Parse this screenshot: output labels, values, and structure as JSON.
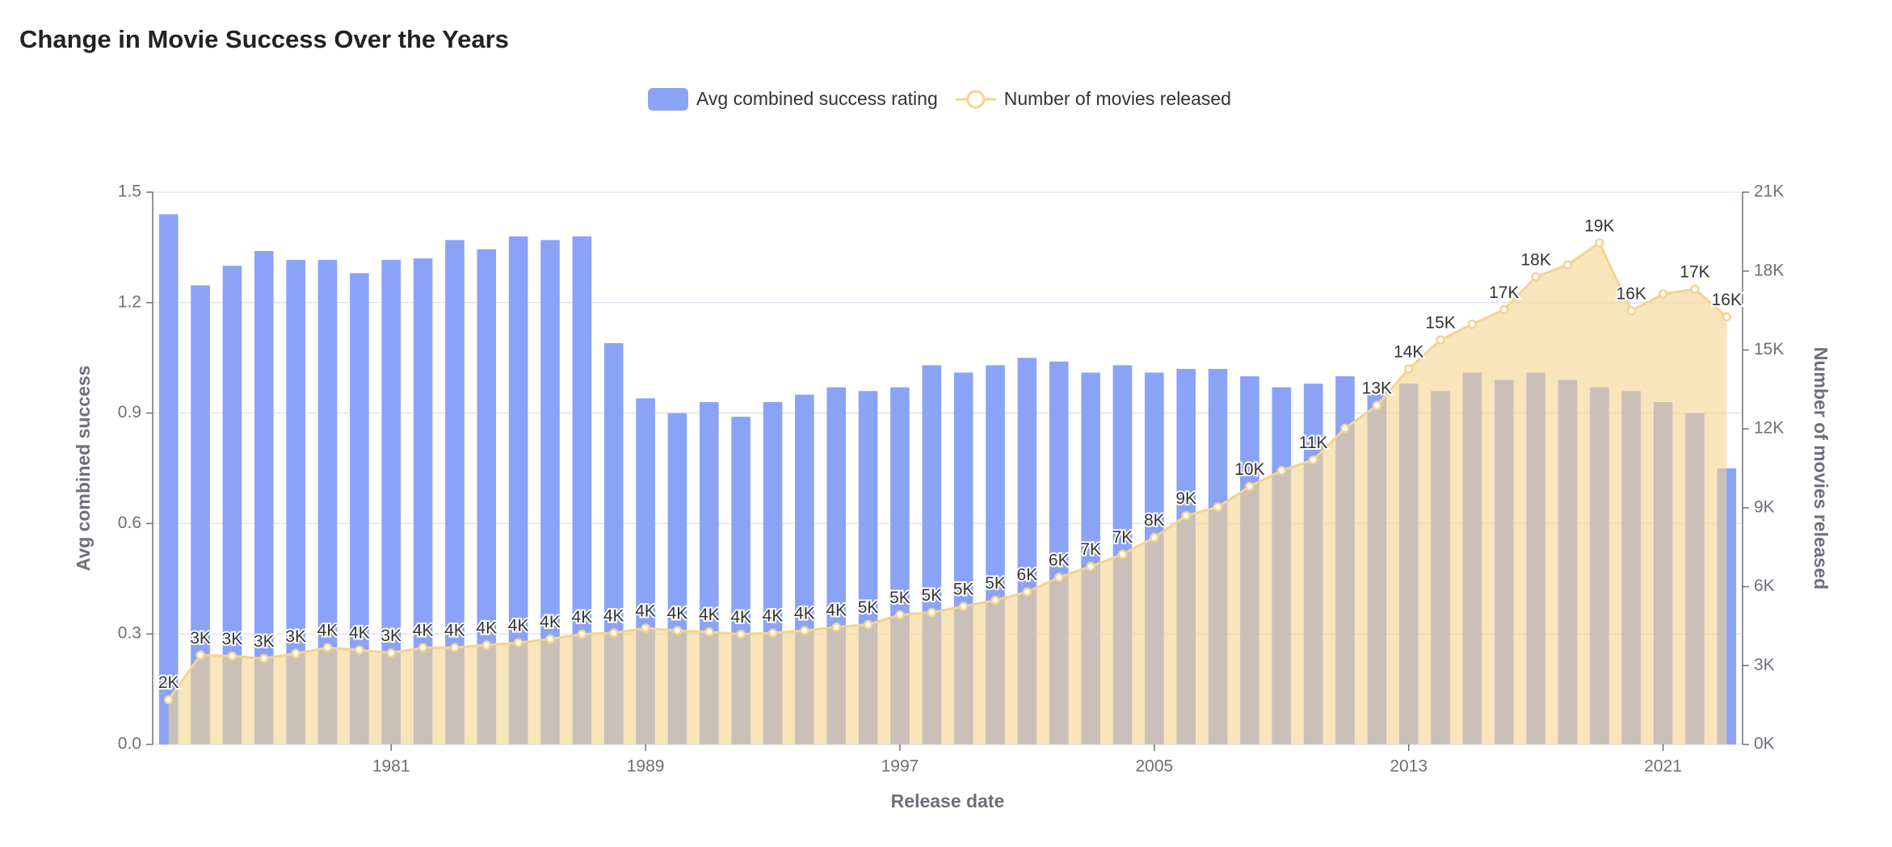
{
  "chart_data": {
    "type": "bar-line",
    "title": "Change in Movie Success Over the Years",
    "x_label": "Release date",
    "y_label": "Avg combined success",
    "y2_label": "Number of movies released",
    "categories": [
      null,
      null,
      null,
      null,
      null,
      null,
      null,
      "1981",
      null,
      null,
      null,
      null,
      null,
      null,
      null,
      "1989",
      null,
      null,
      null,
      null,
      null,
      null,
      null,
      "1997",
      null,
      null,
      null,
      null,
      null,
      null,
      null,
      "2005",
      null,
      null,
      null,
      null,
      null,
      null,
      null,
      "2013",
      null,
      null,
      null,
      null,
      null,
      null,
      null,
      "2021",
      null,
      null
    ],
    "series": [
      {
        "name": "Avg combined success rating",
        "type": "bar",
        "color": "#8ba3f6",
        "values": [
          1.44,
          1.247,
          1.3,
          1.34,
          1.316,
          1.316,
          1.28,
          1.316,
          1.32,
          1.37,
          1.345,
          1.38,
          1.37,
          1.38,
          1.09,
          0.94,
          0.9,
          0.93,
          0.89,
          0.93,
          0.95,
          0.97,
          0.96,
          0.97,
          1.03,
          1.01,
          1.03,
          1.05,
          1.04,
          1.01,
          1.03,
          1.01,
          1.02,
          1.02,
          1.0,
          0.97,
          0.98,
          1.0,
          0.96,
          0.98,
          0.96,
          1.01,
          0.99,
          1.01,
          0.99,
          0.97,
          0.96,
          0.93,
          0.9,
          0.75
        ]
      },
      {
        "name": "Number of movies released",
        "type": "area",
        "axis": "y2",
        "color": "#f5d38f",
        "values": [
          1700,
          3400,
          3360,
          3270,
          3460,
          3680,
          3590,
          3480,
          3680,
          3680,
          3780,
          3870,
          4010,
          4190,
          4240,
          4420,
          4330,
          4280,
          4190,
          4240,
          4330,
          4460,
          4560,
          4930,
          5020,
          5250,
          5480,
          5800,
          6350,
          6770,
          7230,
          7870,
          8700,
          9030,
          9810,
          10410,
          10820,
          12020,
          12890,
          14280,
          15380,
          15980,
          16530,
          17780,
          18240,
          19070,
          16490,
          17130,
          17310,
          16260
        ],
        "value_labels": [
          "2K",
          "3K",
          "3K",
          "3K",
          "3K",
          "4K",
          "4K",
          "3K",
          "4K",
          "4K",
          "4K",
          "4K",
          "4K",
          "4K",
          "4K",
          "4K",
          "4K",
          "4K",
          "4K",
          "4K",
          "4K",
          "4K",
          "5K",
          "5K",
          "5K",
          "5K",
          "5K",
          "6K",
          "6K",
          "7K",
          "7K",
          "8K",
          "9K",
          null,
          "10K",
          null,
          "11K",
          null,
          "13K",
          "14K",
          "15K",
          null,
          "17K",
          "18K",
          null,
          "19K",
          "16K",
          null,
          "17K",
          "16K"
        ]
      }
    ],
    "ylim": [
      0,
      1.5
    ],
    "yticks": [
      {
        "value": 0,
        "label": "0.0"
      },
      0.3,
      0.6,
      0.9,
      1.2,
      1.5
    ],
    "y2lim": [
      0,
      21000
    ],
    "y2ticks": [
      {
        "value": 0,
        "label": "0K"
      },
      {
        "value": 3000,
        "label": "3K"
      },
      {
        "value": 6000,
        "label": "6K"
      },
      {
        "value": 9000,
        "label": "9K"
      },
      {
        "value": 12000,
        "label": "12K"
      },
      {
        "value": 15000,
        "label": "15K"
      },
      {
        "value": 18000,
        "label": "18K"
      },
      {
        "value": 21000,
        "label": "21K"
      }
    ],
    "grid": true,
    "legend": "top"
  }
}
